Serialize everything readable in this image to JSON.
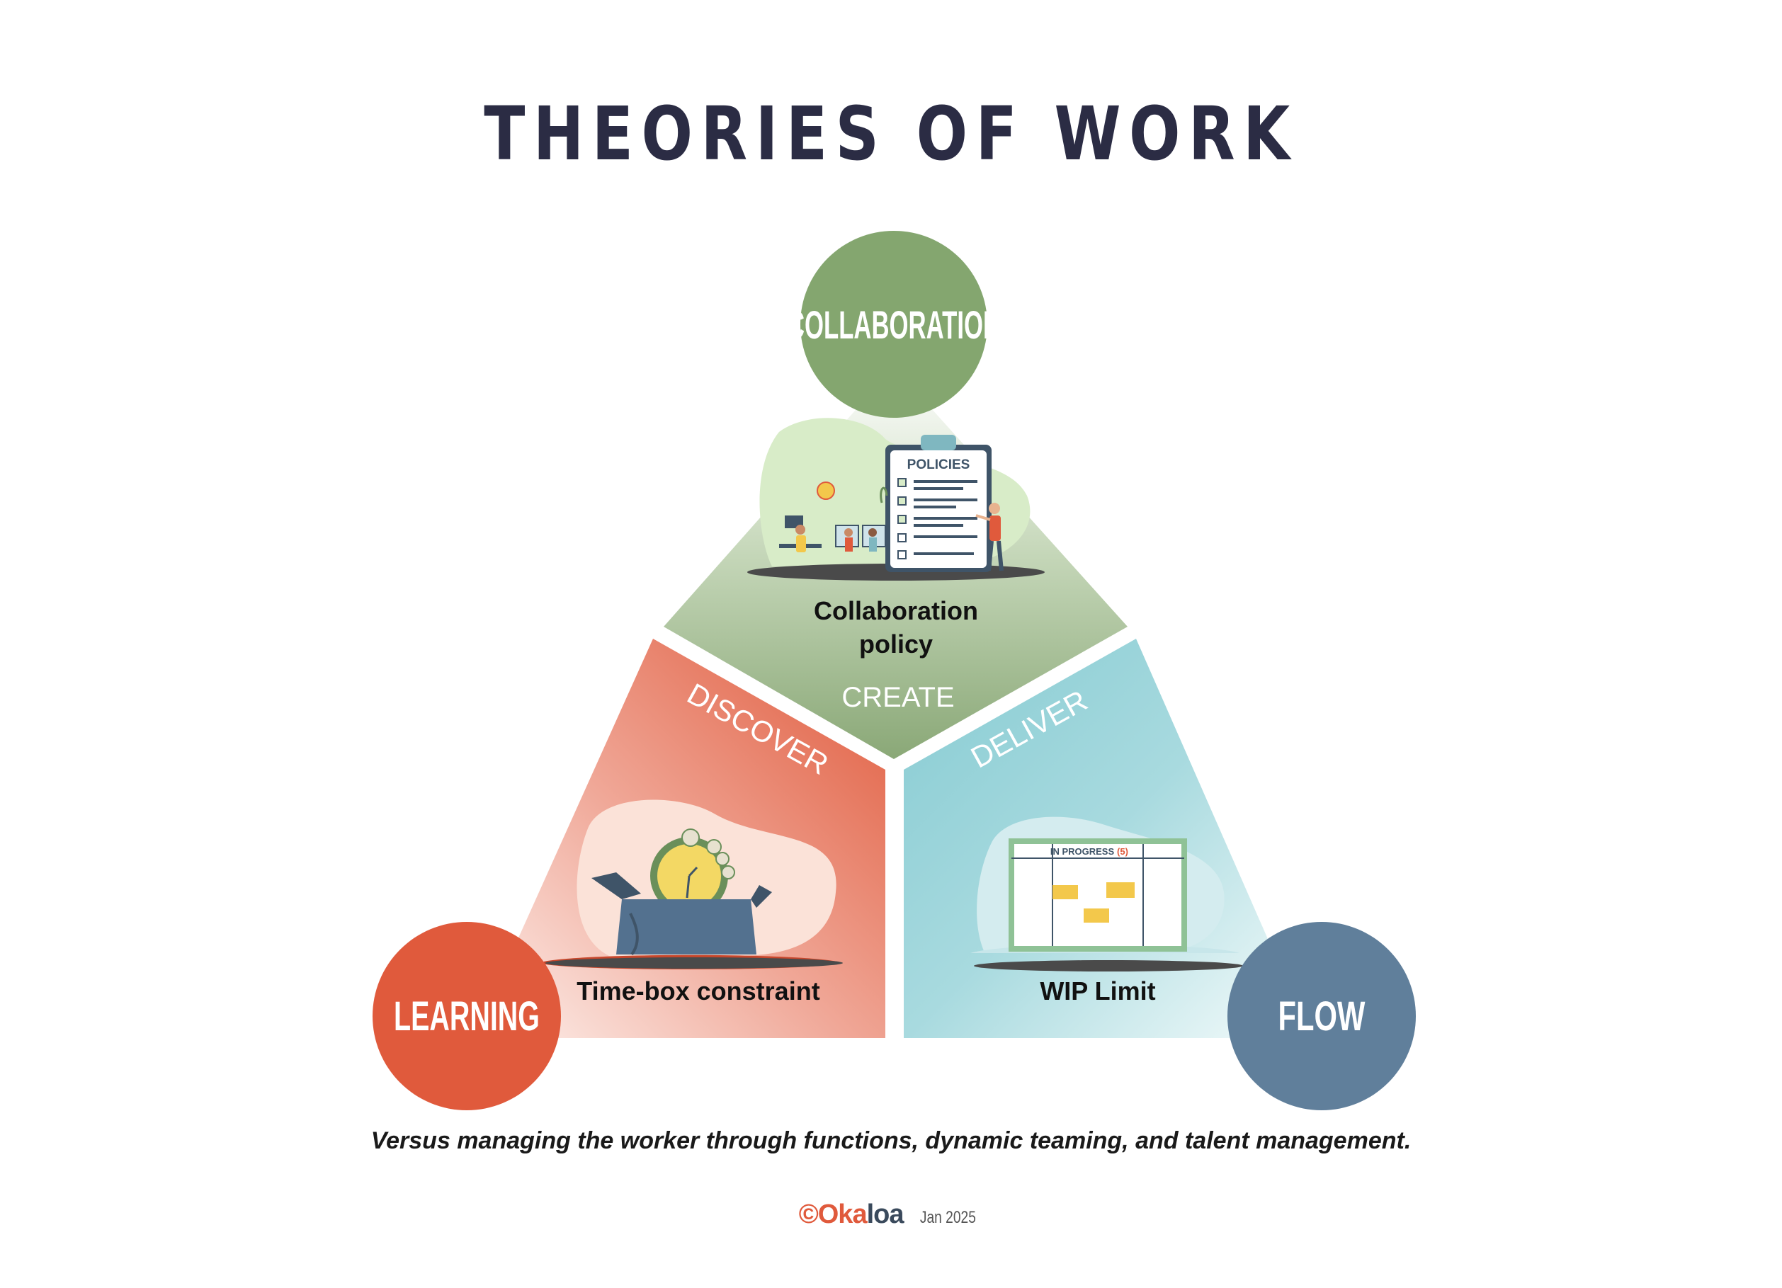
{
  "title": "THEORIES OF WORK",
  "nodes": {
    "top": {
      "label": "COLLABORATION",
      "color": "#84a66f"
    },
    "left": {
      "label": "LEARNING",
      "color": "#e05a3c"
    },
    "right": {
      "label": "FLOW",
      "color": "#607f9b"
    }
  },
  "segments": {
    "top": {
      "verb": "CREATE",
      "caption_line1": "Collaboration",
      "caption_line2": "policy",
      "color": "#8aa877"
    },
    "left": {
      "verb": "DISCOVER",
      "caption": "Time-box constraint",
      "color": "#e05a3c"
    },
    "right": {
      "verb": "DELIVER",
      "caption": "WIP Limit",
      "color": "#86cbd2"
    }
  },
  "illustrations": {
    "policies_heading": "POLICIES",
    "board_heading": "IN PROGRESS",
    "board_limit": "(5)"
  },
  "footnote": "Versus managing the worker through functions, dynamic teaming, and talent management.",
  "footer": {
    "copyright": "©",
    "brand_first": "Oka",
    "brand_second": "loa",
    "date": "Jan 2025"
  }
}
